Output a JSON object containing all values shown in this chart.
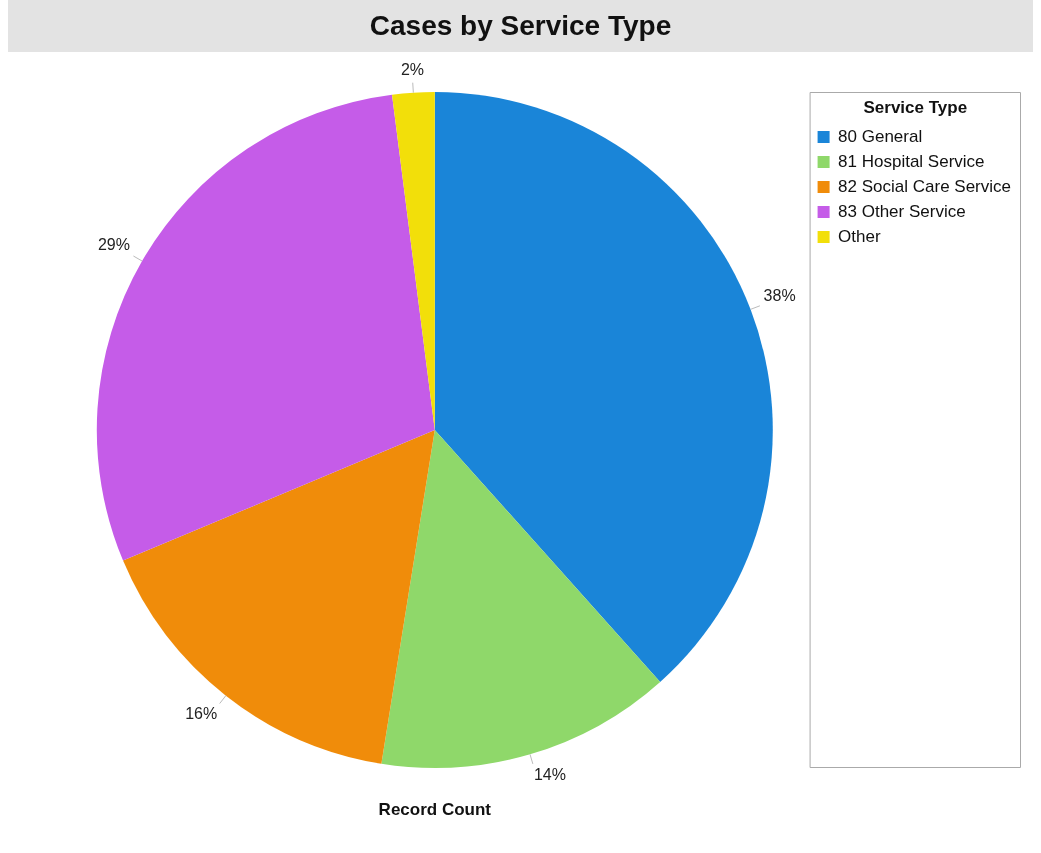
{
  "chart_data": {
    "type": "pie",
    "title": "Cases by Service Type",
    "legend_title": "Service Type",
    "xlabel": "Record Count",
    "categories": [
      "80 General",
      "81 Hospital Service",
      "82 Social Care Service",
      "83 Other Service",
      "Other"
    ],
    "values": [
      38,
      14,
      16,
      29,
      2
    ],
    "value_labels": [
      "38%",
      "14%",
      "16%",
      "29%",
      "2%"
    ],
    "colors": [
      "#1a85d8",
      "#8fd86a",
      "#f08c0a",
      "#c55ce8",
      "#f2df0a"
    ],
    "legend": "top right"
  }
}
